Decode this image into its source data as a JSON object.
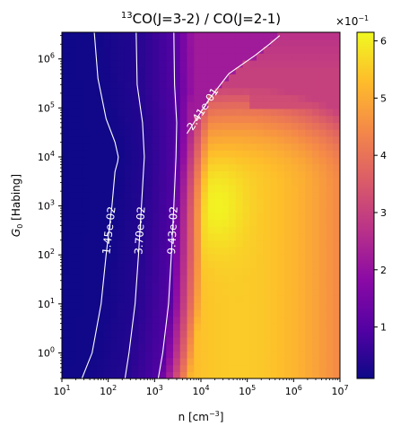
{
  "chart_data": {
    "type": "heatmap",
    "title_sup": "13",
    "title_main": "CO(J=3-2) / CO(J=2-1)",
    "xlabel_main": "n [cm",
    "xlabel_sup": "−3",
    "xlabel_end": "]",
    "ylabel_main": "G",
    "ylabel_sub": "0",
    "ylabel_end": " [Habing]",
    "x_scale": "log",
    "y_scale": "log",
    "xlim": [
      10,
      10000000
    ],
    "ylim": [
      0.3,
      3500000
    ],
    "x_ticks": [
      {
        "value": 10,
        "base": "10",
        "exp": "1"
      },
      {
        "value": 100,
        "base": "10",
        "exp": "2"
      },
      {
        "value": 1000,
        "base": "10",
        "exp": "3"
      },
      {
        "value": 10000,
        "base": "10",
        "exp": "4"
      },
      {
        "value": 100000,
        "base": "10",
        "exp": "5"
      },
      {
        "value": 1000000,
        "base": "10",
        "exp": "6"
      },
      {
        "value": 10000000,
        "base": "10",
        "exp": "7"
      }
    ],
    "y_ticks": [
      {
        "value": 1,
        "base": "10",
        "exp": "0"
      },
      {
        "value": 10,
        "base": "10",
        "exp": "1"
      },
      {
        "value": 100,
        "base": "10",
        "exp": "2"
      },
      {
        "value": 1000,
        "base": "10",
        "exp": "3"
      },
      {
        "value": 10000,
        "base": "10",
        "exp": "4"
      },
      {
        "value": 100000,
        "base": "10",
        "exp": "5"
      },
      {
        "value": 1000000,
        "base": "10",
        "exp": "6"
      }
    ],
    "colormap": "plasma",
    "colorbar": {
      "min": 0.01,
      "max": 0.615,
      "multiplier_base": "×10",
      "multiplier_exp": "−1",
      "ticks": [
        {
          "value": 0.1,
          "label": "1"
        },
        {
          "value": 0.2,
          "label": "2"
        },
        {
          "value": 0.3,
          "label": "3"
        },
        {
          "value": 0.4,
          "label": "4"
        },
        {
          "value": 0.5,
          "label": "5"
        },
        {
          "value": 0.6,
          "label": "6"
        }
      ]
    },
    "contours": [
      {
        "level": 0.0145,
        "label": "1.45e-02",
        "points": [
          [
            27,
            0.3
          ],
          [
            45,
            1
          ],
          [
            70,
            10
          ],
          [
            90,
            100
          ],
          [
            120,
            1000
          ],
          [
            140,
            5000
          ],
          [
            160,
            8000
          ],
          [
            165,
            10000
          ],
          [
            140,
            20000
          ],
          [
            90,
            60000
          ],
          [
            60,
            400000
          ],
          [
            50,
            3500000
          ]
        ]
      },
      {
        "level": 0.037,
        "label": "3.70e-02",
        "points": [
          [
            230,
            0.3
          ],
          [
            280,
            1
          ],
          [
            380,
            10
          ],
          [
            450,
            100
          ],
          [
            520,
            1000
          ],
          [
            600,
            10000
          ],
          [
            550,
            50000
          ],
          [
            420,
            300000
          ],
          [
            400,
            3500000
          ]
        ]
      },
      {
        "level": 0.0943,
        "label": "9.43e-02",
        "points": [
          [
            1200,
            0.3
          ],
          [
            1500,
            1
          ],
          [
            2000,
            10
          ],
          [
            2300,
            100
          ],
          [
            2600,
            1000
          ],
          [
            2900,
            10000
          ],
          [
            3000,
            50000
          ],
          [
            2700,
            300000
          ],
          [
            2600,
            3500000
          ]
        ]
      },
      {
        "level": 0.241,
        "label": "2.41e-01",
        "points": [
          [
            5000,
            30000
          ],
          [
            8000,
            60000
          ],
          [
            15000,
            150000
          ],
          [
            40000,
            500000
          ],
          [
            150000,
            1200000
          ],
          [
            300000,
            2000000
          ],
          [
            500000,
            3000000
          ]
        ]
      }
    ]
  }
}
